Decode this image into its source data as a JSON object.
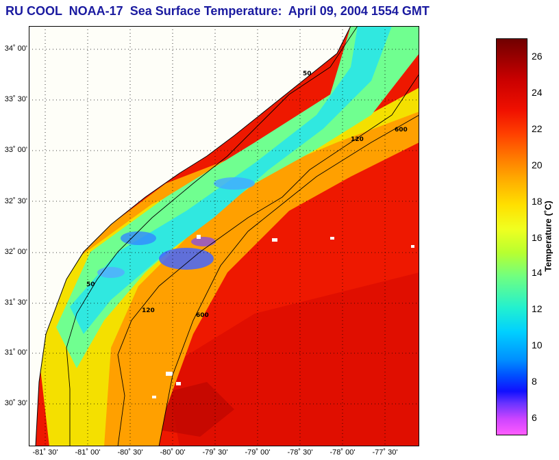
{
  "title": "RU COOL  NOAA-17  Sea Surface Temperature:  April 09, 2004 1554 GMT",
  "map": {
    "lat_labels": [
      "34˚ 00'",
      "33˚ 30'",
      "33˚ 00'",
      "32˚ 30'",
      "32˚ 00'",
      "31˚ 30'",
      "31˚ 00'",
      "30˚ 30'"
    ],
    "lon_labels": [
      "-81˚ 30'",
      "-81˚ 00'",
      "-80˚ 30'",
      "-80˚ 00'",
      "-79˚ 30'",
      "-79˚ 00'",
      "-78˚ 30'",
      "-78˚ 00'",
      "-77˚ 30'"
    ],
    "isobath_labels": [
      "50",
      "120",
      "600"
    ]
  },
  "colorbar": {
    "label": "Temperature (˚C)",
    "ticks": [
      "26",
      "24",
      "22",
      "20",
      "18",
      "16",
      "14",
      "12",
      "10",
      "8",
      "6"
    ]
  }
}
